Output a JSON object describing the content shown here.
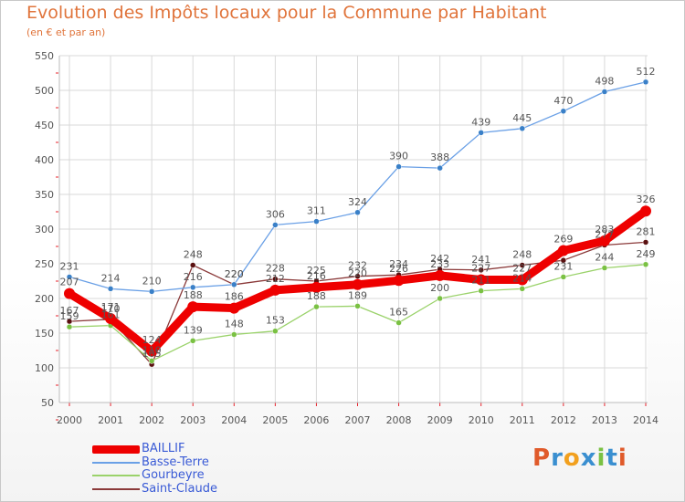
{
  "title": "Evolution des Impôts locaux pour la Commune par Habitant",
  "subtitle": "(en € et par an)",
  "logo": {
    "text": "Proxiti",
    "colors": [
      "#e05a2a",
      "#3a8fd0",
      "#f2a01e",
      "#3a8fd0",
      "#7ac143",
      "#3a8fd0",
      "#e05a2a"
    ]
  },
  "colors": {
    "title": "#e0743b",
    "legend_text": "#3a5bd6",
    "grid": "#d9d9d9",
    "axis_tick": "#e8202a"
  },
  "chart_data": {
    "type": "line",
    "title": "Evolution des Impôts locaux pour la Commune par Habitant",
    "xlabel": "",
    "ylabel": "(en € et par an)",
    "x": [
      "2000",
      "2001",
      "2002",
      "2003",
      "2004",
      "2005",
      "2006",
      "2007",
      "2008",
      "2009",
      "2010",
      "2011",
      "2012",
      "2013",
      "2014"
    ],
    "ylim": [
      50,
      550
    ],
    "yticks": [
      50,
      100,
      150,
      200,
      250,
      300,
      350,
      400,
      450,
      500,
      550
    ],
    "series": [
      {
        "name": "Saint-Claude",
        "color": "#8b3a3a",
        "marker": "#5a1010",
        "values": [
          167,
          170,
          105,
          248,
          220,
          228,
          225,
          232,
          234,
          242,
          241,
          248,
          255,
          277,
          281
        ],
        "labels": [
          "167",
          "170",
          "105",
          "248",
          "220",
          "228",
          "225",
          "232",
          "234",
          "242",
          "241",
          "248",
          "",
          "277",
          "281"
        ]
      },
      {
        "name": "Gourbeyre",
        "color": "#9ad26a",
        "marker": "#7ac143",
        "values": [
          159,
          161,
          110,
          139,
          148,
          153,
          188,
          189,
          165,
          200,
          211,
          214,
          231,
          244,
          249
        ],
        "labels": [
          "159",
          "161",
          "110",
          "139",
          "148",
          "153",
          "188",
          "189",
          "165",
          "200",
          "211",
          "214",
          "231",
          "244",
          "249"
        ]
      },
      {
        "name": "Basse-Terre",
        "color": "#6aa0e6",
        "marker": "#3a80c8",
        "values": [
          231,
          214,
          210,
          216,
          220,
          306,
          311,
          324,
          390,
          388,
          439,
          445,
          470,
          498,
          512
        ],
        "labels": [
          "231",
          "214",
          "210",
          "216",
          "220",
          "306",
          "311",
          "324",
          "390",
          "388",
          "439",
          "445",
          "470",
          "498",
          "512"
        ]
      },
      {
        "name": "BAILLIF",
        "color": "#ee0000",
        "marker": "#ee0000",
        "values": [
          207,
          171,
          124,
          188,
          186,
          212,
          216,
          220,
          226,
          233,
          227,
          227,
          269,
          283,
          326
        ],
        "labels": [
          "207",
          "171",
          "124",
          "188",
          "186",
          "212",
          "216",
          "220",
          "226",
          "233",
          "227",
          "227",
          "269",
          "283",
          "326"
        ]
      }
    ],
    "legend": [
      "BAILLIF",
      "Basse-Terre",
      "Gourbeyre",
      "Saint-Claude"
    ],
    "legend_position": "bottom-left",
    "grid": true
  }
}
